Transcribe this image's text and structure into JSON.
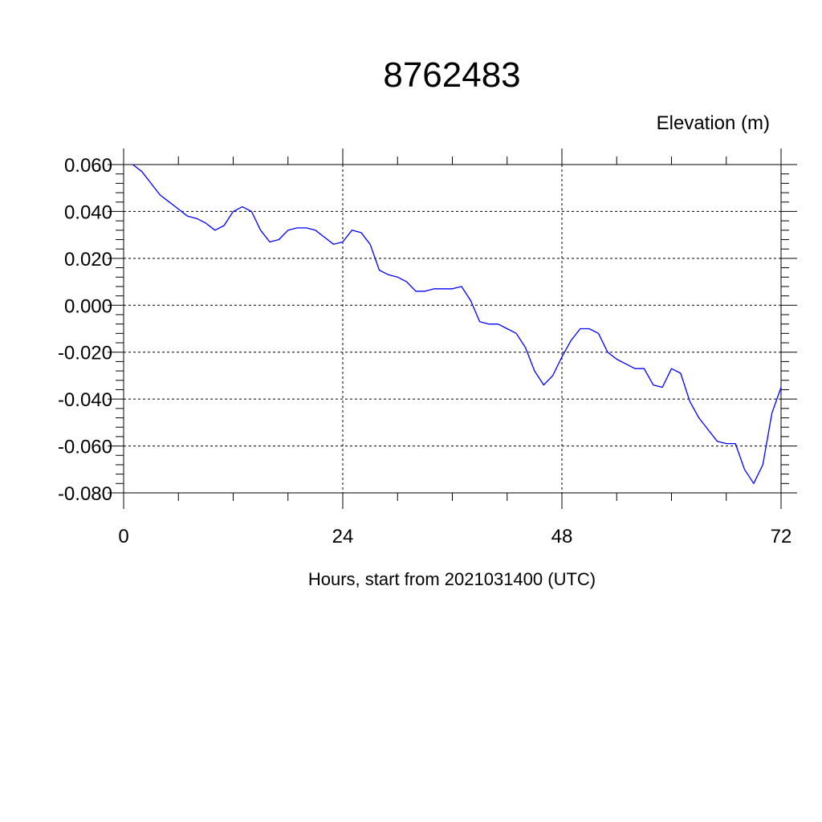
{
  "chart_data": {
    "type": "line",
    "title": "8762483",
    "ylabel": "Elevation (m)",
    "xlabel": "Hours, start from 2021031400 (UTC)",
    "xlim": [
      0,
      72
    ],
    "ylim": [
      -0.08,
      0.06
    ],
    "x_ticks": [
      0,
      24,
      48,
      72
    ],
    "x_tick_labels": [
      "0",
      "24",
      "48",
      "72"
    ],
    "y_ticks": [
      0.06,
      0.04,
      0.02,
      0.0,
      -0.02,
      -0.04,
      -0.06,
      -0.08
    ],
    "y_tick_labels": [
      "0.060",
      "0.040",
      "0.020",
      "0.000",
      "-0.020",
      "-0.040",
      "-0.060",
      "-0.080"
    ],
    "grid": true,
    "line_color": "#0000ff",
    "series": [
      {
        "x": [
          1,
          2,
          3,
          4,
          5,
          6,
          7,
          8,
          9,
          10,
          11,
          12,
          13,
          14,
          15,
          16,
          17,
          18,
          19,
          20,
          21,
          22,
          23,
          24,
          25,
          26,
          27,
          28,
          29,
          30,
          31,
          32,
          33,
          34,
          35,
          36,
          37,
          38,
          39,
          40,
          41,
          42,
          43,
          44,
          45,
          46,
          47,
          48,
          49,
          50,
          51,
          52,
          53,
          54,
          55,
          56,
          57,
          58,
          59,
          60,
          61,
          62,
          63,
          64,
          65,
          66,
          67,
          68,
          69,
          70,
          71,
          72
        ],
        "y": [
          0.06,
          0.057,
          0.052,
          0.047,
          0.044,
          0.041,
          0.038,
          0.037,
          0.035,
          0.032,
          0.034,
          0.04,
          0.042,
          0.04,
          0.032,
          0.027,
          0.028,
          0.032,
          0.033,
          0.033,
          0.032,
          0.029,
          0.026,
          0.027,
          0.032,
          0.031,
          0.026,
          0.015,
          0.013,
          0.012,
          0.01,
          0.006,
          0.006,
          0.007,
          0.007,
          0.007,
          0.008,
          0.002,
          -0.007,
          -0.008,
          -0.008,
          -0.01,
          -0.012,
          -0.018,
          -0.028,
          -0.034,
          -0.03,
          -0.022,
          -0.015,
          -0.01,
          -0.01,
          -0.012,
          -0.02,
          -0.023,
          -0.025,
          -0.027,
          -0.027,
          -0.034,
          -0.035,
          -0.027,
          -0.029,
          -0.041,
          -0.048,
          -0.053,
          -0.058,
          -0.059,
          -0.059,
          -0.07,
          -0.076,
          -0.068,
          -0.046,
          -0.035
        ]
      }
    ]
  }
}
